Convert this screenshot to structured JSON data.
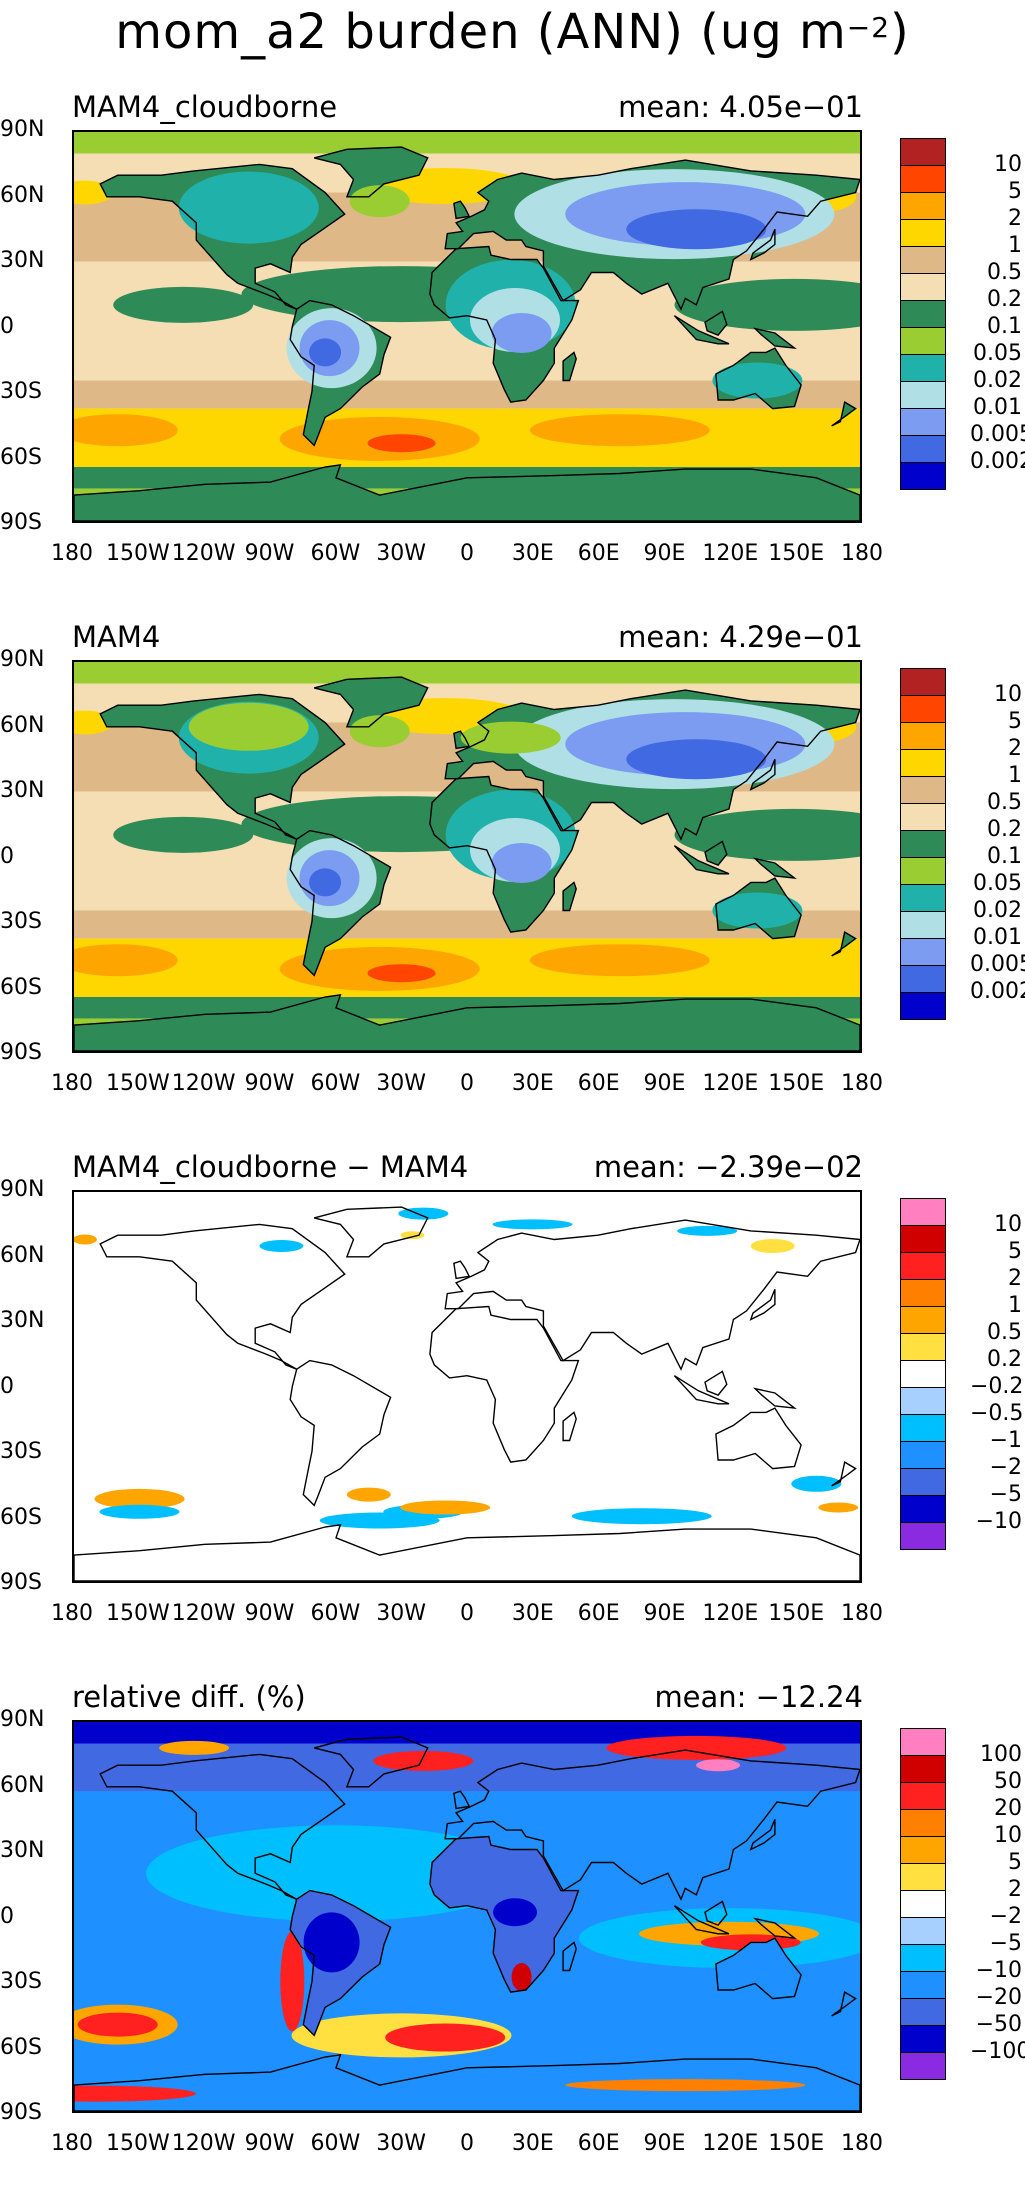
{
  "title_main": "mom_a2 burden (ANN) (ug m",
  "title_exp": "−2",
  "title_close": ")",
  "y_ticks": [
    "90N",
    "60N",
    "30N",
    "0",
    "30S",
    "60S",
    "90S"
  ],
  "x_ticks": [
    "180",
    "150W",
    "120W",
    "90W",
    "60W",
    "30W",
    "0",
    "30E",
    "60E",
    "90E",
    "120E",
    "150E",
    "180"
  ],
  "panels": [
    {
      "label": "MAM4_cloudborne",
      "mean": "mean: 4.05e−01",
      "colorbar_labels": [
        "10",
        "5",
        "2",
        "1",
        "0.5",
        "0.2",
        "0.1",
        "0.05",
        "0.02",
        "0.01",
        "0.005",
        "0.002"
      ],
      "colorbar_colors": [
        "#b22222",
        "#ff4500",
        "#ffa500",
        "#ffd700",
        "#deb887",
        "#f5deb3",
        "#2e8b57",
        "#9acd32",
        "#20b2aa",
        "#b0e0e6",
        "#7b9cf0",
        "#4169e1",
        "#0000cd"
      ]
    },
    {
      "label": "MAM4",
      "mean": "mean: 4.29e−01",
      "colorbar_labels": [
        "10",
        "5",
        "2",
        "1",
        "0.5",
        "0.2",
        "0.1",
        "0.05",
        "0.02",
        "0.01",
        "0.005",
        "0.002"
      ],
      "colorbar_colors": [
        "#b22222",
        "#ff4500",
        "#ffa500",
        "#ffd700",
        "#deb887",
        "#f5deb3",
        "#2e8b57",
        "#9acd32",
        "#20b2aa",
        "#b0e0e6",
        "#7b9cf0",
        "#4169e1",
        "#0000cd"
      ]
    },
    {
      "label": "MAM4_cloudborne − MAM4",
      "mean": "mean: −2.39e−02",
      "colorbar_labels": [
        "10",
        "5",
        "2",
        "1",
        "0.5",
        "0.2",
        "−0.2",
        "−0.5",
        "−1",
        "−2",
        "−5",
        "−10"
      ],
      "colorbar_colors": [
        "#ff7fc0",
        "#d00000",
        "#ff2020",
        "#ff7f00",
        "#ffa500",
        "#ffe040",
        "#ffffff",
        "#a8d0ff",
        "#00bfff",
        "#1e90ff",
        "#4169e1",
        "#0000cd",
        "#8a2be2"
      ]
    },
    {
      "label": "relative diff. (%)",
      "mean": "mean: −12.24",
      "colorbar_labels": [
        "100",
        "50",
        "20",
        "10",
        "5",
        "2",
        "−2",
        "−5",
        "−10",
        "−20",
        "−50",
        "−100"
      ],
      "colorbar_colors": [
        "#ff7fc0",
        "#d00000",
        "#ff2020",
        "#ff7f00",
        "#ffa500",
        "#ffe040",
        "#ffffff",
        "#a8d0ff",
        "#00bfff",
        "#1e90ff",
        "#4169e1",
        "#0000cd",
        "#8a2be2"
      ]
    }
  ]
}
